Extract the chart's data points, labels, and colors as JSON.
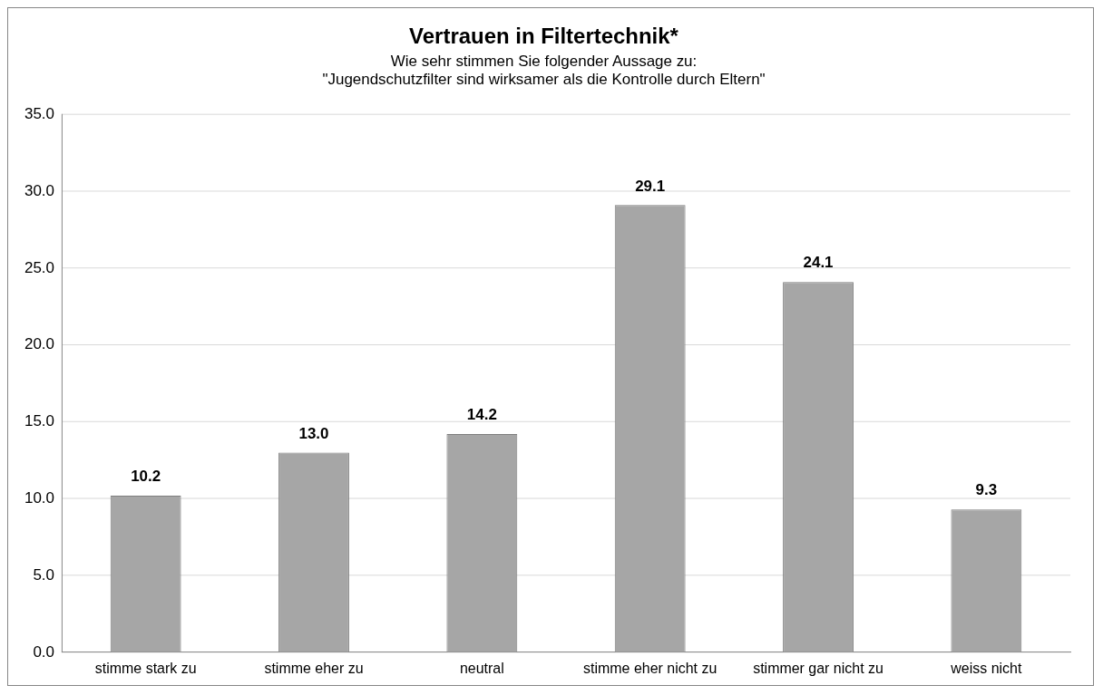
{
  "chart_data": {
    "type": "bar",
    "title": "Vertrauen in Filtertechnik*",
    "subtitle": "Wie sehr stimmen Sie folgender Aussage zu:\n\"Jugendschutzfilter sind wirksamer als die Kontrolle durch Eltern\"",
    "categories": [
      "stimme stark zu",
      "stimme eher zu",
      "neutral",
      "stimme eher nicht zu",
      "stimmer gar nicht zu",
      "weiss nicht"
    ],
    "values": [
      10.2,
      13.0,
      14.2,
      29.1,
      24.1,
      9.3
    ],
    "value_labels": [
      "10.2",
      "13.0",
      "14.2",
      "29.1",
      "24.1",
      "9.3"
    ],
    "color": "#a6a6a6",
    "ylim": [
      0,
      35
    ],
    "yticks": [
      {
        "value": 0,
        "label": "0.0"
      },
      {
        "value": 5,
        "label": "5.0"
      },
      {
        "value": 10,
        "label": "10.0"
      },
      {
        "value": 15,
        "label": "15.0"
      },
      {
        "value": 20,
        "label": "20.0"
      },
      {
        "value": 25,
        "label": "25.0"
      },
      {
        "value": 30,
        "label": "30.0"
      },
      {
        "value": 35,
        "label": "35.0"
      }
    ],
    "grid": "y",
    "legend": false
  }
}
